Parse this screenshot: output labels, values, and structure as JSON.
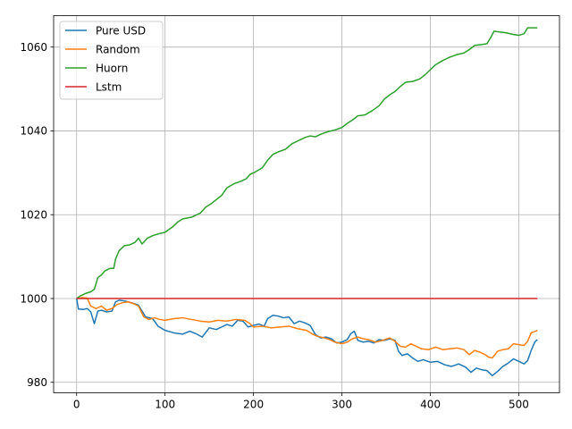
{
  "chart_data": {
    "type": "line",
    "title": "",
    "xlabel": "",
    "ylabel": "",
    "xlim": [
      -26,
      546
    ],
    "ylim": [
      977.5,
      1067.5
    ],
    "xticks": [
      0,
      100,
      200,
      300,
      400,
      500
    ],
    "yticks": [
      980,
      1000,
      1020,
      1040,
      1060
    ],
    "xtick_labels": [
      "0",
      "100",
      "200",
      "300",
      "400",
      "500"
    ],
    "ytick_labels": [
      "980",
      "1000",
      "1020",
      "1040",
      "1060"
    ],
    "grid": true,
    "legend_position": "top-left",
    "series": [
      {
        "name": "Pure USD",
        "color": "#1f77b4",
        "points": [
          [
            0,
            1000
          ],
          [
            2,
            997.5
          ],
          [
            8,
            997.4
          ],
          [
            12,
            997.6
          ],
          [
            16,
            996.8
          ],
          [
            20,
            994.0
          ],
          [
            24,
            997.0
          ],
          [
            28,
            997.2
          ],
          [
            34,
            996.8
          ],
          [
            40,
            997.0
          ],
          [
            44,
            999.2
          ],
          [
            48,
            999.6
          ],
          [
            55,
            999.4
          ],
          [
            62,
            999.0
          ],
          [
            70,
            998.4
          ],
          [
            78,
            995.6
          ],
          [
            86,
            995.2
          ],
          [
            92,
            993.4
          ],
          [
            100,
            992.4
          ],
          [
            110,
            991.8
          ],
          [
            120,
            991.5
          ],
          [
            128,
            992.2
          ],
          [
            135,
            991.6
          ],
          [
            142,
            990.8
          ],
          [
            150,
            993.0
          ],
          [
            158,
            992.6
          ],
          [
            164,
            993.2
          ],
          [
            170,
            993.8
          ],
          [
            176,
            993.4
          ],
          [
            182,
            994.8
          ],
          [
            188,
            994.6
          ],
          [
            194,
            993.2
          ],
          [
            200,
            993.6
          ],
          [
            206,
            993.9
          ],
          [
            212,
            993.4
          ],
          [
            216,
            995.2
          ],
          [
            222,
            996.0
          ],
          [
            228,
            995.8
          ],
          [
            234,
            995.4
          ],
          [
            240,
            995.6
          ],
          [
            246,
            994.0
          ],
          [
            252,
            994.6
          ],
          [
            258,
            994.2
          ],
          [
            264,
            993.6
          ],
          [
            270,
            991.4
          ],
          [
            276,
            990.6
          ],
          [
            282,
            990.8
          ],
          [
            288,
            990.4
          ],
          [
            294,
            989.4
          ],
          [
            300,
            989.6
          ],
          [
            306,
            990.2
          ],
          [
            310,
            991.6
          ],
          [
            314,
            992.2
          ],
          [
            318,
            990.0
          ],
          [
            324,
            989.6
          ],
          [
            330,
            989.8
          ],
          [
            336,
            989.4
          ],
          [
            342,
            990.2
          ],
          [
            348,
            990.0
          ],
          [
            354,
            990.4
          ],
          [
            360,
            990.0
          ],
          [
            364,
            987.4
          ],
          [
            368,
            986.4
          ],
          [
            374,
            986.8
          ],
          [
            380,
            985.8
          ],
          [
            386,
            985.0
          ],
          [
            392,
            985.4
          ],
          [
            400,
            984.8
          ],
          [
            408,
            985.0
          ],
          [
            416,
            984.2
          ],
          [
            424,
            983.8
          ],
          [
            432,
            984.4
          ],
          [
            440,
            983.6
          ],
          [
            446,
            982.4
          ],
          [
            452,
            983.4
          ],
          [
            458,
            983.0
          ],
          [
            464,
            982.8
          ],
          [
            470,
            981.6
          ],
          [
            476,
            982.6
          ],
          [
            482,
            983.8
          ],
          [
            488,
            984.6
          ],
          [
            494,
            985.6
          ],
          [
            500,
            985.0
          ],
          [
            506,
            984.4
          ],
          [
            510,
            985.2
          ],
          [
            514,
            987.6
          ],
          [
            518,
            989.6
          ],
          [
            521,
            990.2
          ]
        ]
      },
      {
        "name": "Random",
        "color": "#ff7f0e",
        "points": [
          [
            0,
            1000
          ],
          [
            6,
            1000.2
          ],
          [
            12,
            1000.1
          ],
          [
            16,
            998.2
          ],
          [
            22,
            997.6
          ],
          [
            28,
            998.2
          ],
          [
            34,
            997.2
          ],
          [
            40,
            997.6
          ],
          [
            46,
            998.6
          ],
          [
            52,
            999.0
          ],
          [
            58,
            999.2
          ],
          [
            64,
            998.8
          ],
          [
            70,
            998.2
          ],
          [
            76,
            995.6
          ],
          [
            82,
            995.0
          ],
          [
            88,
            995.4
          ],
          [
            94,
            995.0
          ],
          [
            100,
            994.8
          ],
          [
            110,
            995.2
          ],
          [
            120,
            995.4
          ],
          [
            130,
            995.0
          ],
          [
            140,
            994.6
          ],
          [
            150,
            994.4
          ],
          [
            160,
            994.8
          ],
          [
            170,
            994.6
          ],
          [
            180,
            995.0
          ],
          [
            190,
            994.8
          ],
          [
            196,
            994.0
          ],
          [
            200,
            993.2
          ],
          [
            210,
            993.4
          ],
          [
            220,
            993.0
          ],
          [
            230,
            993.2
          ],
          [
            240,
            993.4
          ],
          [
            250,
            992.8
          ],
          [
            260,
            992.4
          ],
          [
            266,
            991.6
          ],
          [
            272,
            991.0
          ],
          [
            280,
            990.6
          ],
          [
            286,
            990.2
          ],
          [
            292,
            989.6
          ],
          [
            300,
            989.2
          ],
          [
            306,
            989.6
          ],
          [
            312,
            990.4
          ],
          [
            318,
            990.8
          ],
          [
            324,
            990.4
          ],
          [
            330,
            990.2
          ],
          [
            338,
            989.6
          ],
          [
            346,
            990.0
          ],
          [
            354,
            990.6
          ],
          [
            360,
            989.8
          ],
          [
            366,
            988.6
          ],
          [
            372,
            988.4
          ],
          [
            378,
            989.2
          ],
          [
            384,
            988.6
          ],
          [
            390,
            988.0
          ],
          [
            398,
            987.8
          ],
          [
            406,
            988.4
          ],
          [
            414,
            987.8
          ],
          [
            422,
            988.0
          ],
          [
            430,
            988.2
          ],
          [
            438,
            987.8
          ],
          [
            444,
            986.6
          ],
          [
            450,
            987.6
          ],
          [
            456,
            987.2
          ],
          [
            462,
            986.6
          ],
          [
            466,
            986.0
          ],
          [
            470,
            985.8
          ],
          [
            476,
            987.4
          ],
          [
            482,
            987.8
          ],
          [
            488,
            988.0
          ],
          [
            494,
            989.2
          ],
          [
            500,
            989.0
          ],
          [
            506,
            988.8
          ],
          [
            510,
            989.8
          ],
          [
            514,
            991.8
          ],
          [
            521,
            992.4
          ]
        ]
      },
      {
        "name": "Huorn",
        "color": "#2ca02c",
        "points": [
          [
            0,
            1000
          ],
          [
            4,
            1000.6
          ],
          [
            10,
            1001.2
          ],
          [
            16,
            1001.6
          ],
          [
            20,
            1002.2
          ],
          [
            24,
            1005.0
          ],
          [
            28,
            1005.6
          ],
          [
            32,
            1006.6
          ],
          [
            38,
            1007.2
          ],
          [
            42,
            1007.2
          ],
          [
            44,
            1009.4
          ],
          [
            48,
            1011.4
          ],
          [
            54,
            1012.6
          ],
          [
            60,
            1012.8
          ],
          [
            66,
            1013.4
          ],
          [
            70,
            1014.4
          ],
          [
            74,
            1013.0
          ],
          [
            80,
            1014.4
          ],
          [
            86,
            1015.0
          ],
          [
            92,
            1015.4
          ],
          [
            100,
            1015.8
          ],
          [
            108,
            1017.0
          ],
          [
            114,
            1018.2
          ],
          [
            120,
            1019.0
          ],
          [
            130,
            1019.4
          ],
          [
            140,
            1020.4
          ],
          [
            146,
            1021.8
          ],
          [
            152,
            1022.6
          ],
          [
            158,
            1023.6
          ],
          [
            164,
            1024.6
          ],
          [
            170,
            1026.4
          ],
          [
            178,
            1027.4
          ],
          [
            186,
            1028.0
          ],
          [
            192,
            1028.6
          ],
          [
            196,
            1029.6
          ],
          [
            202,
            1030.2
          ],
          [
            210,
            1031.2
          ],
          [
            216,
            1033.0
          ],
          [
            222,
            1034.4
          ],
          [
            228,
            1035.0
          ],
          [
            236,
            1035.6
          ],
          [
            244,
            1037.0
          ],
          [
            252,
            1037.8
          ],
          [
            258,
            1038.4
          ],
          [
            264,
            1038.8
          ],
          [
            270,
            1038.6
          ],
          [
            276,
            1039.2
          ],
          [
            284,
            1039.8
          ],
          [
            292,
            1040.2
          ],
          [
            300,
            1040.8
          ],
          [
            306,
            1041.8
          ],
          [
            312,
            1042.6
          ],
          [
            318,
            1043.6
          ],
          [
            326,
            1043.8
          ],
          [
            334,
            1044.8
          ],
          [
            342,
            1046.0
          ],
          [
            348,
            1047.6
          ],
          [
            354,
            1048.6
          ],
          [
            360,
            1049.4
          ],
          [
            366,
            1050.6
          ],
          [
            372,
            1051.6
          ],
          [
            380,
            1051.8
          ],
          [
            388,
            1052.4
          ],
          [
            394,
            1053.4
          ],
          [
            400,
            1054.6
          ],
          [
            406,
            1055.8
          ],
          [
            414,
            1056.8
          ],
          [
            422,
            1057.6
          ],
          [
            430,
            1058.2
          ],
          [
            438,
            1058.6
          ],
          [
            444,
            1059.4
          ],
          [
            450,
            1060.4
          ],
          [
            458,
            1060.6
          ],
          [
            464,
            1060.8
          ],
          [
            468,
            1062.2
          ],
          [
            472,
            1063.8
          ],
          [
            478,
            1063.6
          ],
          [
            486,
            1063.4
          ],
          [
            494,
            1063.0
          ],
          [
            500,
            1062.8
          ],
          [
            506,
            1063.2
          ],
          [
            510,
            1064.6
          ],
          [
            521,
            1064.6
          ]
        ]
      },
      {
        "name": "Lstm",
        "color": "#d62728",
        "points": [
          [
            0,
            1000
          ],
          [
            521,
            1000
          ]
        ]
      }
    ]
  }
}
